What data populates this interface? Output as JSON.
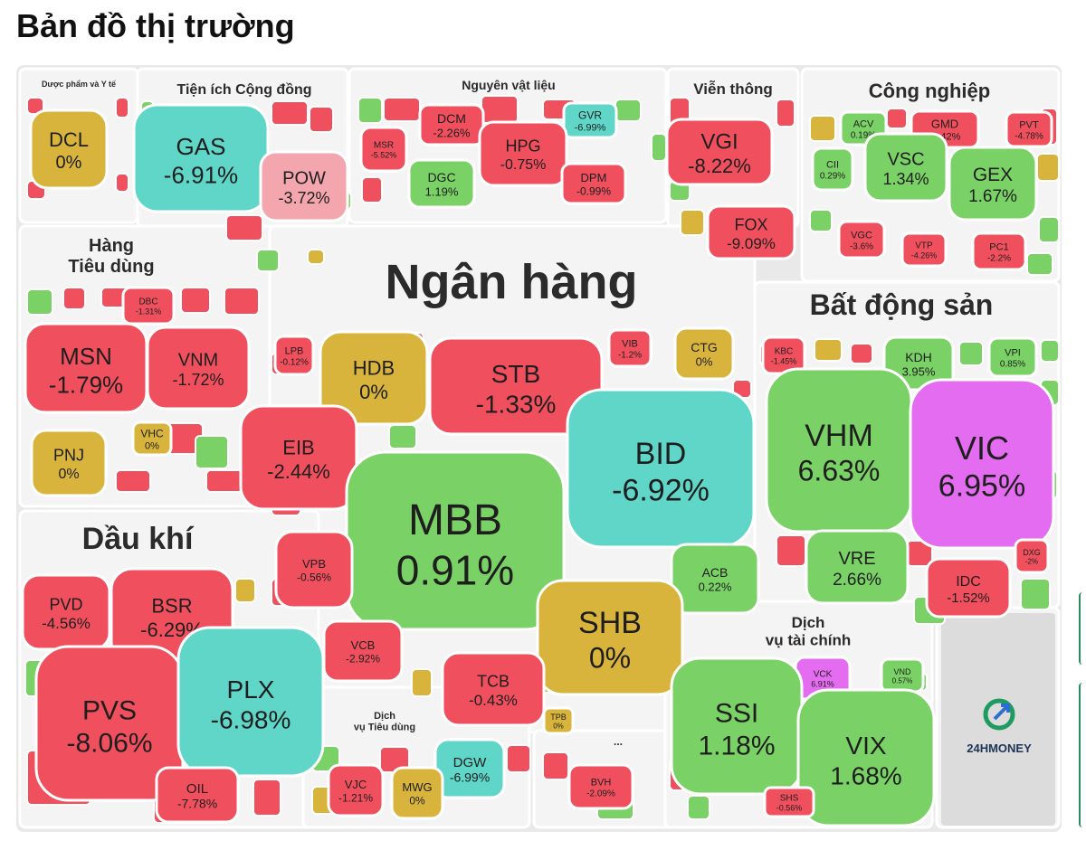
{
  "page": {
    "title": "Bản đồ thị trường"
  },
  "colors": {
    "up": "#7ad165",
    "down": "#f0505e",
    "flat": "#d8b43c",
    "ceiling": "#e46cf0",
    "floor": "#5fd6c8",
    "pale_down": "#f4a6ae",
    "panel": "#f4f4f4",
    "logo_box": "#dcdcdc"
  },
  "brand": {
    "logo_text": "24HMONEY"
  },
  "chart_data": {
    "type": "treemap",
    "title": "Bản đồ thị trường",
    "sectors": [
      {
        "name": "Dược phẩm và Y tế",
        "stocks": [
          {
            "ticker": "DCL",
            "change": "0%",
            "status": "flat"
          }
        ]
      },
      {
        "name": "Tiện ích Cộng đồng",
        "stocks": [
          {
            "ticker": "GAS",
            "change": "-6.91%",
            "status": "floor"
          },
          {
            "ticker": "POW",
            "change": "-3.72%",
            "status": "pale_down"
          }
        ]
      },
      {
        "name": "Nguyên vật liệu",
        "stocks": [
          {
            "ticker": "DCM",
            "change": "-2.26%",
            "status": "down"
          },
          {
            "ticker": "GVR",
            "change": "-6.99%",
            "status": "floor"
          },
          {
            "ticker": "MSR",
            "change": "-5.52%",
            "status": "down"
          },
          {
            "ticker": "HPG",
            "change": "-0.75%",
            "status": "down"
          },
          {
            "ticker": "DGC",
            "change": "1.19%",
            "status": "up"
          },
          {
            "ticker": "DPM",
            "change": "-0.99%",
            "status": "down"
          }
        ]
      },
      {
        "name": "Viễn thông",
        "stocks": [
          {
            "ticker": "VGI",
            "change": "-8.22%",
            "status": "down"
          },
          {
            "ticker": "FOX",
            "change": "-9.09%",
            "status": "down"
          }
        ]
      },
      {
        "name": "Công nghiệp",
        "stocks": [
          {
            "ticker": "ACV",
            "change": "0.19%",
            "status": "up"
          },
          {
            "ticker": "GMD",
            "change": "-0.42%",
            "status": "down"
          },
          {
            "ticker": "PVT",
            "change": "-4.78%",
            "status": "down"
          },
          {
            "ticker": "CII",
            "change": "0.29%",
            "status": "up"
          },
          {
            "ticker": "VSC",
            "change": "1.34%",
            "status": "up"
          },
          {
            "ticker": "GEX",
            "change": "1.67%",
            "status": "up"
          },
          {
            "ticker": "VGC",
            "change": "-3.6%",
            "status": "down"
          },
          {
            "ticker": "VTP",
            "change": "-4.26%",
            "status": "down"
          },
          {
            "ticker": "PC1",
            "change": "-2.2%",
            "status": "down"
          }
        ]
      },
      {
        "name": "Hàng\nTiêu dùng",
        "stocks": [
          {
            "ticker": "DBC",
            "change": "-1.31%",
            "status": "down"
          },
          {
            "ticker": "MSN",
            "change": "-1.79%",
            "status": "down"
          },
          {
            "ticker": "VNM",
            "change": "-1.72%",
            "status": "down"
          },
          {
            "ticker": "VHC",
            "change": "0%",
            "status": "flat"
          },
          {
            "ticker": "PNJ",
            "change": "0%",
            "status": "flat"
          }
        ]
      },
      {
        "name": "Ngân hàng",
        "stocks": [
          {
            "ticker": "LPB",
            "change": "-0.12%",
            "status": "down"
          },
          {
            "ticker": "HDB",
            "change": "0%",
            "status": "flat"
          },
          {
            "ticker": "STB",
            "change": "-1.33%",
            "status": "down"
          },
          {
            "ticker": "VIB",
            "change": "-1.2%",
            "status": "down"
          },
          {
            "ticker": "CTG",
            "change": "0%",
            "status": "flat"
          },
          {
            "ticker": "EIB",
            "change": "-2.44%",
            "status": "down"
          },
          {
            "ticker": "BID",
            "change": "-6.92%",
            "status": "floor"
          },
          {
            "ticker": "MBB",
            "change": "0.91%",
            "status": "up"
          },
          {
            "ticker": "VPB",
            "change": "-0.56%",
            "status": "down"
          },
          {
            "ticker": "ACB",
            "change": "0.22%",
            "status": "up"
          },
          {
            "ticker": "SHB",
            "change": "0%",
            "status": "flat"
          },
          {
            "ticker": "VCB",
            "change": "-2.92%",
            "status": "down"
          },
          {
            "ticker": "TCB",
            "change": "-0.43%",
            "status": "down"
          },
          {
            "ticker": "TPB",
            "change": "0%",
            "status": "flat"
          }
        ]
      },
      {
        "name": "Bất động sản",
        "stocks": [
          {
            "ticker": "KBC",
            "change": "-1.45%",
            "status": "down"
          },
          {
            "ticker": "KDH",
            "change": "3.95%",
            "status": "up"
          },
          {
            "ticker": "VPI",
            "change": "0.85%",
            "status": "up"
          },
          {
            "ticker": "VHM",
            "change": "6.63%",
            "status": "up"
          },
          {
            "ticker": "VIC",
            "change": "6.95%",
            "status": "ceiling"
          },
          {
            "ticker": "VRE",
            "change": "2.66%",
            "status": "up"
          },
          {
            "ticker": "DXG",
            "change": "-2%",
            "status": "down"
          },
          {
            "ticker": "IDC",
            "change": "-1.52%",
            "status": "down"
          }
        ]
      },
      {
        "name": "Dầu khí",
        "stocks": [
          {
            "ticker": "PVD",
            "change": "-4.56%",
            "status": "down"
          },
          {
            "ticker": "BSR",
            "change": "-6.29%",
            "status": "down"
          },
          {
            "ticker": "PVS",
            "change": "-8.06%",
            "status": "down"
          },
          {
            "ticker": "PLX",
            "change": "-6.98%",
            "status": "floor"
          },
          {
            "ticker": "OIL",
            "change": "-7.78%",
            "status": "down"
          }
        ]
      },
      {
        "name": "Dịch\nvụ Tiêu dùng",
        "stocks": [
          {
            "ticker": "DGW",
            "change": "-6.99%",
            "status": "floor"
          },
          {
            "ticker": "VJC",
            "change": "-1.21%",
            "status": "down"
          },
          {
            "ticker": "MWG",
            "change": "0%",
            "status": "flat"
          }
        ]
      },
      {
        "name": "...",
        "stocks": [
          {
            "ticker": "BVH",
            "change": "-2.09%",
            "status": "down"
          }
        ]
      },
      {
        "name": "Dịch\nvụ tài chính",
        "stocks": [
          {
            "ticker": "VCK",
            "change": "6.91%",
            "status": "ceiling"
          },
          {
            "ticker": "VND",
            "change": "0.57%",
            "status": "up"
          },
          {
            "ticker": "SSI",
            "change": "1.18%",
            "status": "up"
          },
          {
            "ticker": "VIX",
            "change": "1.68%",
            "status": "up"
          },
          {
            "ticker": "SHS",
            "change": "-0.56%",
            "status": "down"
          }
        ]
      }
    ]
  }
}
